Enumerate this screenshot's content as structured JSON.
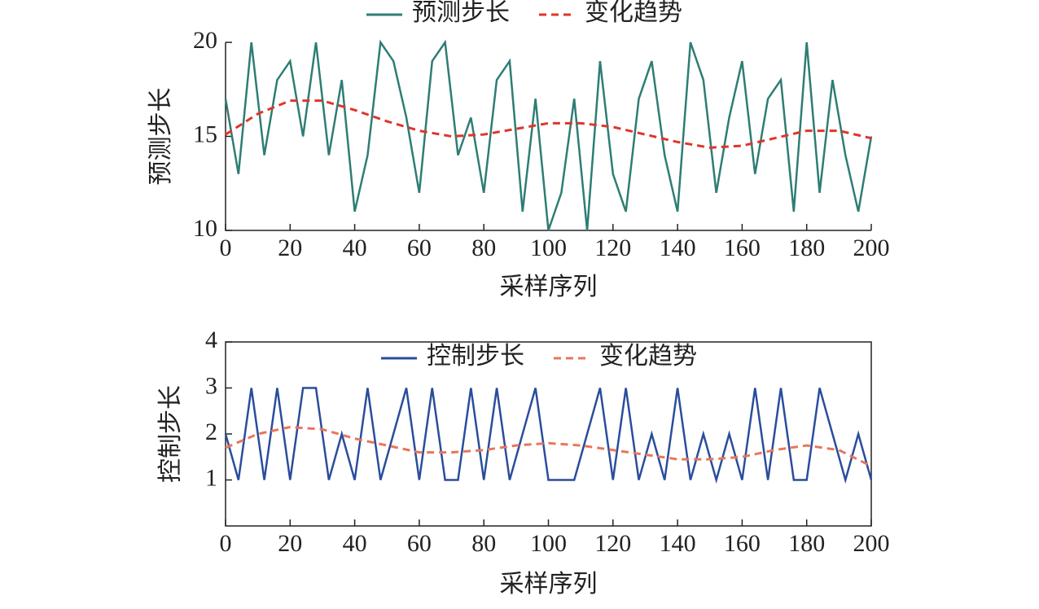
{
  "chart_data": [
    {
      "type": "line",
      "xlabel": "采样序列",
      "ylabel": "预测步长",
      "xlim": [
        0,
        200
      ],
      "xticks": [
        0,
        20,
        40,
        60,
        80,
        100,
        120,
        140,
        160,
        180,
        200
      ],
      "ylim": [
        10,
        20
      ],
      "yticks": [
        10,
        15,
        20
      ],
      "legend": "upper center",
      "frame": "left-bottom",
      "series": [
        {
          "name": "预测步长",
          "color": "#2e7d74",
          "style": "solid",
          "x": [
            0,
            4,
            8,
            12,
            16,
            20,
            24,
            28,
            32,
            36,
            40,
            44,
            48,
            52,
            56,
            60,
            64,
            68,
            72,
            76,
            80,
            84,
            88,
            92,
            96,
            100,
            104,
            108,
            112,
            116,
            120,
            124,
            128,
            132,
            136,
            140,
            144,
            148,
            152,
            156,
            160,
            164,
            168,
            172,
            176,
            180,
            184,
            188,
            192,
            196,
            200
          ],
          "values": [
            17,
            13,
            20,
            14,
            18,
            19,
            15,
            20,
            14,
            18,
            11,
            14,
            20,
            19,
            16,
            12,
            19,
            20,
            14,
            16,
            12,
            18,
            19,
            11,
            17,
            10,
            12,
            17,
            10,
            19,
            13,
            11,
            17,
            19,
            14,
            11,
            20,
            18,
            12,
            16,
            19,
            13,
            17,
            18,
            11,
            20,
            12,
            18,
            14,
            11,
            15
          ]
        },
        {
          "name": "变化趋势",
          "color": "#e0352b",
          "style": "dashed",
          "x": [
            0,
            10,
            20,
            30,
            40,
            50,
            60,
            70,
            80,
            90,
            100,
            110,
            120,
            130,
            140,
            150,
            160,
            170,
            180,
            190,
            200
          ],
          "values": [
            15.1,
            16.2,
            16.9,
            16.9,
            16.4,
            15.8,
            15.3,
            15.0,
            15.1,
            15.4,
            15.7,
            15.7,
            15.5,
            15.1,
            14.7,
            14.4,
            14.5,
            14.9,
            15.3,
            15.3,
            14.9
          ]
        }
      ]
    },
    {
      "type": "line",
      "xlabel": "采样序列",
      "ylabel": "控制步长",
      "xlim": [
        0,
        200
      ],
      "xticks": [
        0,
        20,
        40,
        60,
        80,
        100,
        120,
        140,
        160,
        180,
        200
      ],
      "ylim": [
        0,
        4
      ],
      "yticks": [
        1,
        2,
        3,
        4
      ],
      "legend": "upper center",
      "frame": "box",
      "series": [
        {
          "name": "控制步长",
          "color": "#2a4d9c",
          "style": "solid",
          "x": [
            0,
            4,
            8,
            12,
            16,
            20,
            24,
            28,
            32,
            36,
            40,
            44,
            48,
            52,
            56,
            60,
            64,
            68,
            72,
            76,
            80,
            84,
            88,
            92,
            96,
            100,
            104,
            108,
            112,
            116,
            120,
            124,
            128,
            132,
            136,
            140,
            144,
            148,
            152,
            156,
            160,
            164,
            168,
            172,
            176,
            180,
            184,
            188,
            192,
            196,
            200
          ],
          "values": [
            2,
            1,
            3,
            1,
            3,
            1,
            3,
            3,
            1,
            2,
            1,
            3,
            1,
            2,
            3,
            1,
            3,
            1,
            1,
            3,
            1,
            3,
            1,
            2,
            3,
            1,
            1,
            1,
            2,
            3,
            1,
            3,
            1,
            2,
            1,
            3,
            1,
            2,
            1,
            2,
            1,
            3,
            1,
            3,
            1,
            1,
            3,
            2,
            1,
            2,
            1
          ]
        },
        {
          "name": "变化趋势",
          "color": "#e8765a",
          "style": "dashed",
          "x": [
            0,
            10,
            20,
            30,
            40,
            50,
            60,
            70,
            80,
            90,
            100,
            110,
            120,
            130,
            140,
            150,
            160,
            170,
            180,
            190,
            200
          ],
          "values": [
            1.7,
            2.0,
            2.15,
            2.1,
            1.9,
            1.75,
            1.6,
            1.6,
            1.65,
            1.75,
            1.8,
            1.75,
            1.65,
            1.55,
            1.45,
            1.45,
            1.5,
            1.65,
            1.75,
            1.65,
            1.3
          ]
        }
      ]
    }
  ]
}
